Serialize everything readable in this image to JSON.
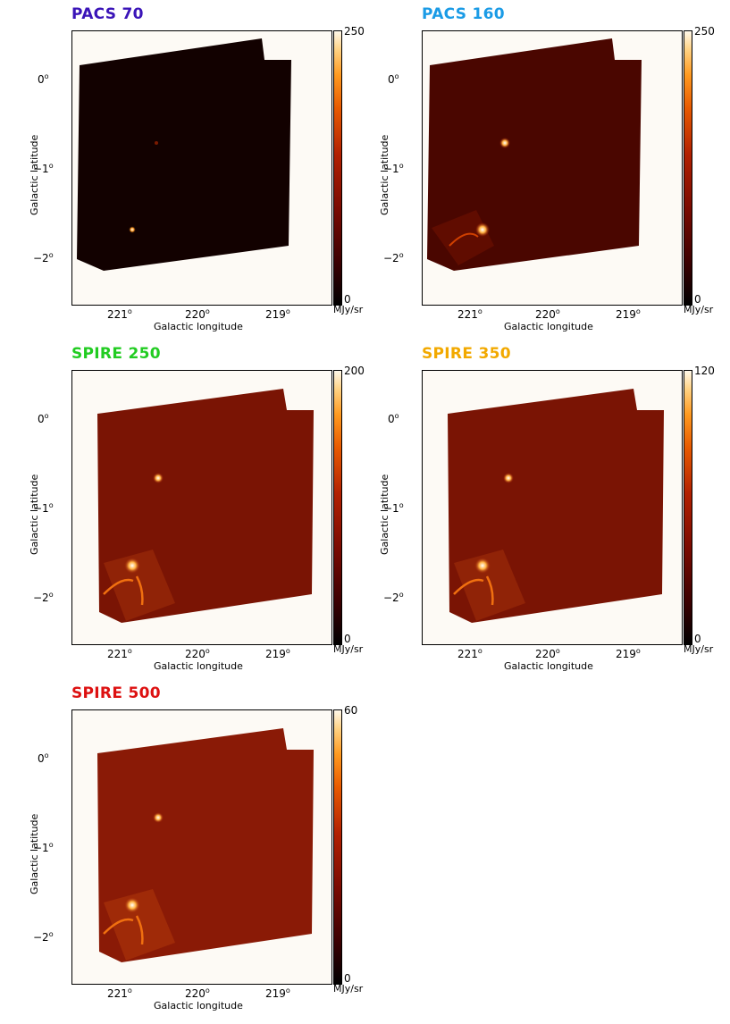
{
  "common": {
    "ylabel": "Galactic latitude",
    "xlabel": "Galactic longitude",
    "yticks": [
      "0",
      "−1",
      "−2"
    ],
    "xticks": [
      "221",
      "220",
      "219"
    ],
    "degree": "o",
    "unit": "MJy/sr",
    "cbar_min": "0"
  },
  "panels": [
    {
      "title": "PACS 70",
      "cbar_max": "250",
      "title_color": "#3a14b8"
    },
    {
      "title": "PACS 160",
      "cbar_max": "250",
      "title_color": "#1a9be6"
    },
    {
      "title": "SPIRE 250",
      "cbar_max": "200",
      "title_color": "#22cc22"
    },
    {
      "title": "SPIRE 350",
      "cbar_max": "120",
      "title_color": "#f2a900"
    },
    {
      "title": "SPIRE 500",
      "cbar_max": "60",
      "title_color": "#dd1111"
    }
  ],
  "colormap": {
    "low": "#000000",
    "mid": "#b22000",
    "high": "#fff8ea"
  }
}
